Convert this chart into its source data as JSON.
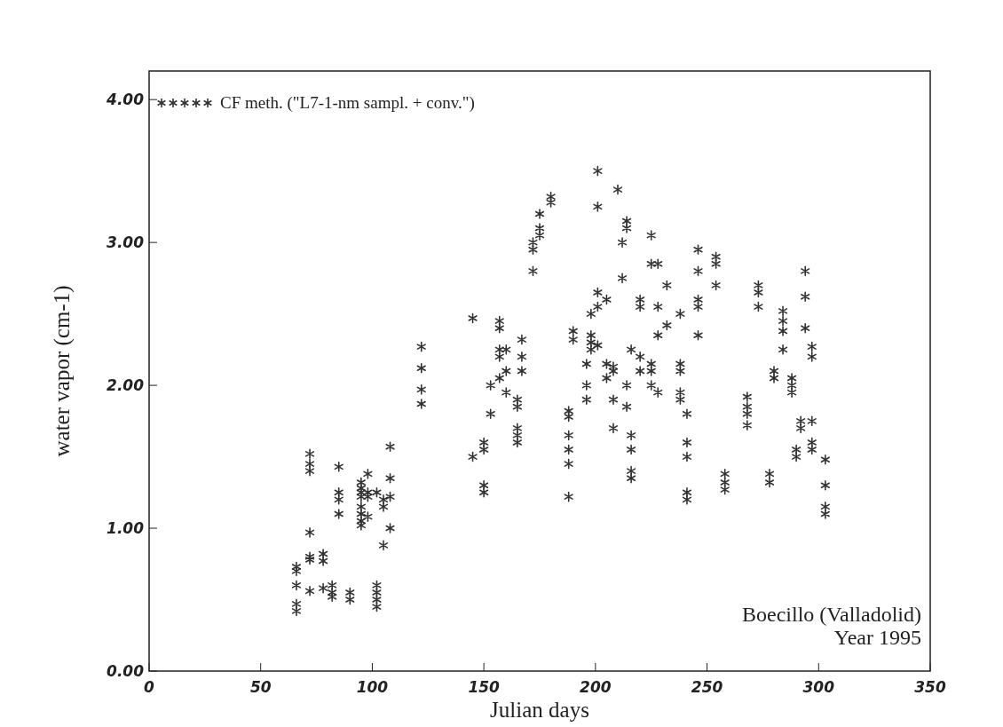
{
  "chart_data": {
    "type": "scatter",
    "xlabel": "Julian days",
    "ylabel": "water vapor (cm-1)",
    "xlim": [
      0,
      350
    ],
    "xticks": [
      0,
      50,
      100,
      150,
      200,
      250,
      300,
      350
    ],
    "ylim": [
      0,
      4.2
    ],
    "yticks": [
      {
        "value": 0,
        "label": "0.00"
      },
      {
        "value": 1,
        "label": "1.00"
      },
      {
        "value": 2,
        "label": "2.00"
      },
      {
        "value": 3,
        "label": "3.00"
      },
      {
        "value": 4,
        "label": "4.00"
      }
    ],
    "legend": "top left",
    "grid": false,
    "marker": "cross",
    "annotations": [
      "Boecillo (Valladolid)",
      "Year 1995"
    ],
    "series": [
      {
        "name": "CF meth. (\"L7-1-nm sampl. + conv.\")",
        "color": "#333333",
        "x": [
          66,
          66,
          66,
          66,
          66,
          72,
          72,
          72,
          72,
          72,
          72,
          72,
          78,
          78,
          78,
          82,
          82,
          82,
          85,
          85,
          85,
          85,
          90,
          90,
          95,
          95,
          95,
          95,
          95,
          95,
          95,
          95,
          98,
          98,
          98,
          98,
          102,
          102,
          102,
          102,
          102,
          105,
          105,
          105,
          108,
          108,
          108,
          108,
          122,
          122,
          122,
          122,
          145,
          145,
          150,
          150,
          150,
          150,
          153,
          153,
          157,
          157,
          157,
          157,
          157,
          160,
          160,
          160,
          165,
          165,
          165,
          165,
          165,
          167,
          167,
          167,
          172,
          172,
          172,
          175,
          175,
          175,
          180,
          180,
          188,
          188,
          188,
          188,
          188,
          188,
          190,
          190,
          196,
          196,
          196,
          198,
          198,
          198,
          198,
          201,
          201,
          201,
          201,
          201,
          205,
          205,
          205,
          208,
          208,
          208,
          208,
          210,
          212,
          212,
          214,
          214,
          214,
          214,
          216,
          216,
          216,
          216,
          216,
          220,
          220,
          220,
          220,
          225,
          225,
          225,
          225,
          225,
          228,
          228,
          228,
          228,
          232,
          232,
          238,
          238,
          238,
          238,
          238,
          241,
          241,
          241,
          241,
          241,
          246,
          246,
          246,
          246,
          246,
          254,
          254,
          254,
          258,
          258,
          258,
          268,
          268,
          268,
          268,
          273,
          273,
          273,
          278,
          278,
          280,
          280,
          284,
          284,
          284,
          284,
          288,
          288,
          288,
          290,
          290,
          292,
          292,
          294,
          294,
          294,
          297,
          297,
          297,
          297,
          297,
          303,
          303,
          303,
          303
        ],
        "values": [
          0.42,
          0.47,
          0.6,
          0.7,
          0.73,
          0.78,
          0.8,
          0.97,
          1.4,
          1.45,
          1.52,
          0.56,
          0.58,
          0.77,
          0.82,
          0.52,
          0.55,
          0.6,
          1.1,
          1.2,
          1.25,
          1.43,
          0.5,
          0.55,
          1.02,
          1.05,
          1.1,
          1.15,
          1.22,
          1.25,
          1.28,
          1.32,
          1.08,
          1.22,
          1.25,
          1.38,
          0.45,
          0.5,
          0.55,
          0.6,
          1.25,
          0.88,
          1.15,
          1.2,
          1.0,
          1.22,
          1.35,
          1.57,
          1.87,
          1.97,
          2.12,
          2.27,
          1.5,
          2.47,
          1.25,
          1.3,
          1.55,
          1.6,
          1.8,
          2.0,
          2.05,
          2.2,
          2.25,
          2.4,
          2.45,
          1.95,
          2.1,
          2.25,
          1.6,
          1.65,
          1.7,
          1.85,
          1.9,
          2.1,
          2.2,
          2.32,
          2.8,
          2.95,
          3.0,
          3.05,
          3.1,
          3.2,
          3.28,
          3.32,
          1.22,
          1.45,
          1.55,
          1.65,
          1.78,
          1.82,
          2.32,
          2.38,
          1.9,
          2.0,
          2.15,
          2.25,
          2.3,
          2.35,
          2.5,
          2.28,
          2.55,
          2.65,
          3.25,
          3.5,
          2.05,
          2.15,
          2.6,
          1.7,
          1.9,
          2.1,
          2.13,
          3.37,
          2.75,
          3.0,
          1.85,
          2.0,
          3.1,
          3.15,
          1.55,
          1.65,
          1.4,
          1.35,
          2.25,
          2.1,
          2.2,
          2.55,
          2.6,
          2.0,
          2.1,
          2.15,
          2.85,
          3.05,
          1.95,
          2.35,
          2.55,
          2.85,
          2.42,
          2.7,
          1.9,
          1.95,
          2.1,
          2.15,
          2.5,
          1.5,
          1.6,
          1.8,
          1.2,
          1.25,
          2.35,
          2.55,
          2.6,
          2.8,
          2.95,
          2.7,
          2.85,
          2.9,
          1.27,
          1.32,
          1.38,
          1.72,
          1.8,
          1.85,
          1.92,
          2.55,
          2.65,
          2.7,
          1.32,
          1.38,
          2.05,
          2.1,
          2.25,
          2.38,
          2.45,
          2.52,
          1.95,
          2.0,
          2.05,
          1.5,
          1.55,
          1.7,
          1.75,
          2.4,
          2.62,
          2.8,
          2.2,
          2.27,
          1.55,
          1.6,
          1.75,
          1.1,
          1.15,
          1.3,
          1.48
        ]
      }
    ]
  }
}
